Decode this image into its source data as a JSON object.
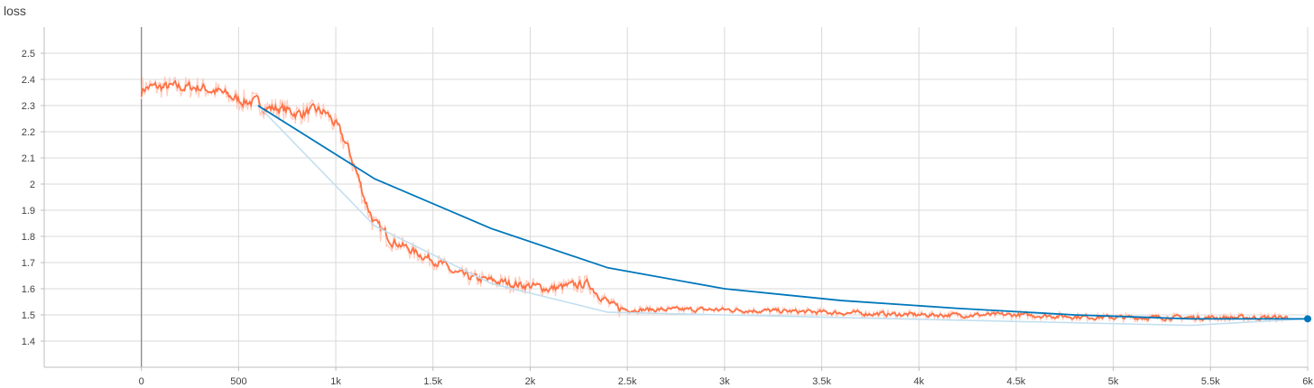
{
  "chart_data": {
    "type": "line",
    "title": "loss",
    "xlabel": "",
    "ylabel": "",
    "xlim": [
      -500,
      6000
    ],
    "ylim": [
      1.3,
      2.6
    ],
    "xticks": [
      0,
      500,
      1000,
      1500,
      2000,
      2500,
      3000,
      3500,
      4000,
      4500,
      5000,
      5500,
      6000
    ],
    "xtick_labels": [
      "0",
      "500",
      "1k",
      "1.5k",
      "2k",
      "2.5k",
      "3k",
      "3.5k",
      "4k",
      "4.5k",
      "5k",
      "5.5k",
      "6k"
    ],
    "yticks": [
      1.4,
      1.5,
      1.6,
      1.7,
      1.8,
      1.9,
      2.0,
      2.1,
      2.2,
      2.3,
      2.4,
      2.5
    ],
    "ytick_labels": [
      "1.4",
      "1.5",
      "1.6",
      "1.7",
      "1.8",
      "1.9",
      "2",
      "2.1",
      "2.2",
      "2.3",
      "2.4",
      "2.5"
    ],
    "grid": true,
    "series": [
      {
        "color": "#ff7043",
        "raw_color": "#ffcbbd",
        "x": [
          0,
          100,
          200,
          300,
          400,
          500,
          600,
          650,
          700,
          800,
          900,
          950,
          1000,
          1050,
          1100,
          1150,
          1200,
          1300,
          1400,
          1500,
          1550,
          1600,
          1700,
          1800,
          1900,
          2000,
          2100,
          2200,
          2300,
          2330,
          2380,
          2420,
          2500,
          2700,
          3000,
          3500,
          4000,
          4500,
          5000,
          5500,
          5900
        ],
        "y": [
          2.37,
          2.37,
          2.37,
          2.37,
          2.35,
          2.32,
          2.31,
          2.29,
          2.29,
          2.27,
          2.28,
          2.27,
          2.22,
          2.15,
          2.05,
          1.93,
          1.84,
          1.78,
          1.74,
          1.71,
          1.69,
          1.66,
          1.64,
          1.63,
          1.62,
          1.61,
          1.6,
          1.61,
          1.62,
          1.59,
          1.56,
          1.53,
          1.52,
          1.52,
          1.52,
          1.51,
          1.5,
          1.5,
          1.49,
          1.49,
          1.49
        ]
      },
      {
        "color": "#0077bb",
        "raw_color": "#c3dff0",
        "x": [
          600,
          1200,
          1800,
          2400,
          3000,
          3600,
          4200,
          4800,
          5400,
          6000
        ],
        "y": [
          2.3,
          2.02,
          1.83,
          1.68,
          1.6,
          1.555,
          1.525,
          1.5,
          1.485,
          1.485
        ],
        "raw_x": [
          600,
          1200,
          1800,
          2400,
          3000,
          3600,
          4200,
          4800,
          5400,
          6000
        ],
        "raw_y": [
          2.3,
          1.84,
          1.62,
          1.51,
          1.5,
          1.49,
          1.48,
          1.47,
          1.46,
          1.485
        ]
      }
    ]
  }
}
